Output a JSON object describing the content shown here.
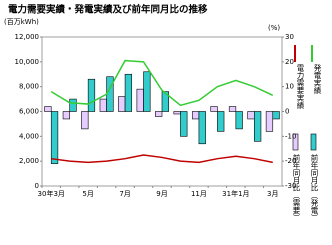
{
  "chart_data": {
    "type": "bar-line",
    "title": "電力需要実績・発電実績及び前年同月比の推移",
    "y_unit": "(百万kWh)",
    "y2_unit": "(%)",
    "categories": [
      "30年3月",
      null,
      "5月",
      null,
      "7月",
      null,
      "9月",
      null,
      "11月",
      null,
      "31年1月",
      null,
      "3月"
    ],
    "ylim": [
      0,
      12000
    ],
    "yticks": [
      0,
      {
        "value": 2000,
        "label": "2,000"
      },
      {
        "value": 4000,
        "label": "4,000"
      },
      {
        "value": 6000,
        "label": "6,000"
      },
      {
        "value": 8000,
        "label": "8,000"
      },
      {
        "value": 10000,
        "label": "10,000"
      },
      {
        "value": 12000,
        "label": "12,000"
      }
    ],
    "y2lim": [
      -30,
      30
    ],
    "y2ticks": [
      -30,
      -20,
      -10,
      0,
      10,
      20,
      30
    ],
    "series": [
      {
        "name": "電力需要実績",
        "kind": "line",
        "color": "#c00000",
        "values": [
          2200,
          2000,
          1900,
          2000,
          2200,
          2500,
          2300,
          2000,
          1900,
          2200,
          2400,
          2200,
          1900
        ]
      },
      {
        "name": "発電実績",
        "kind": "line",
        "color": "#33cc33",
        "values": [
          7600,
          6700,
          6600,
          7400,
          10100,
          10000,
          7700,
          6500,
          6900,
          8000,
          8500,
          8000,
          7300
        ]
      },
      {
        "name": "前年同月比（需要）",
        "kind": "bar",
        "axis": "y2",
        "color": "#e6ccff",
        "values": [
          2,
          -3,
          -7,
          5,
          6,
          9,
          -2,
          -1,
          -3,
          2,
          2,
          -3,
          -8
        ]
      },
      {
        "name": "前年同月比（発電）",
        "kind": "bar",
        "axis": "y2",
        "color": "#33cccc",
        "values": [
          -21,
          5,
          13,
          14,
          15,
          16,
          8,
          -10,
          -13,
          -8,
          -7,
          -12,
          -3
        ]
      }
    ]
  }
}
